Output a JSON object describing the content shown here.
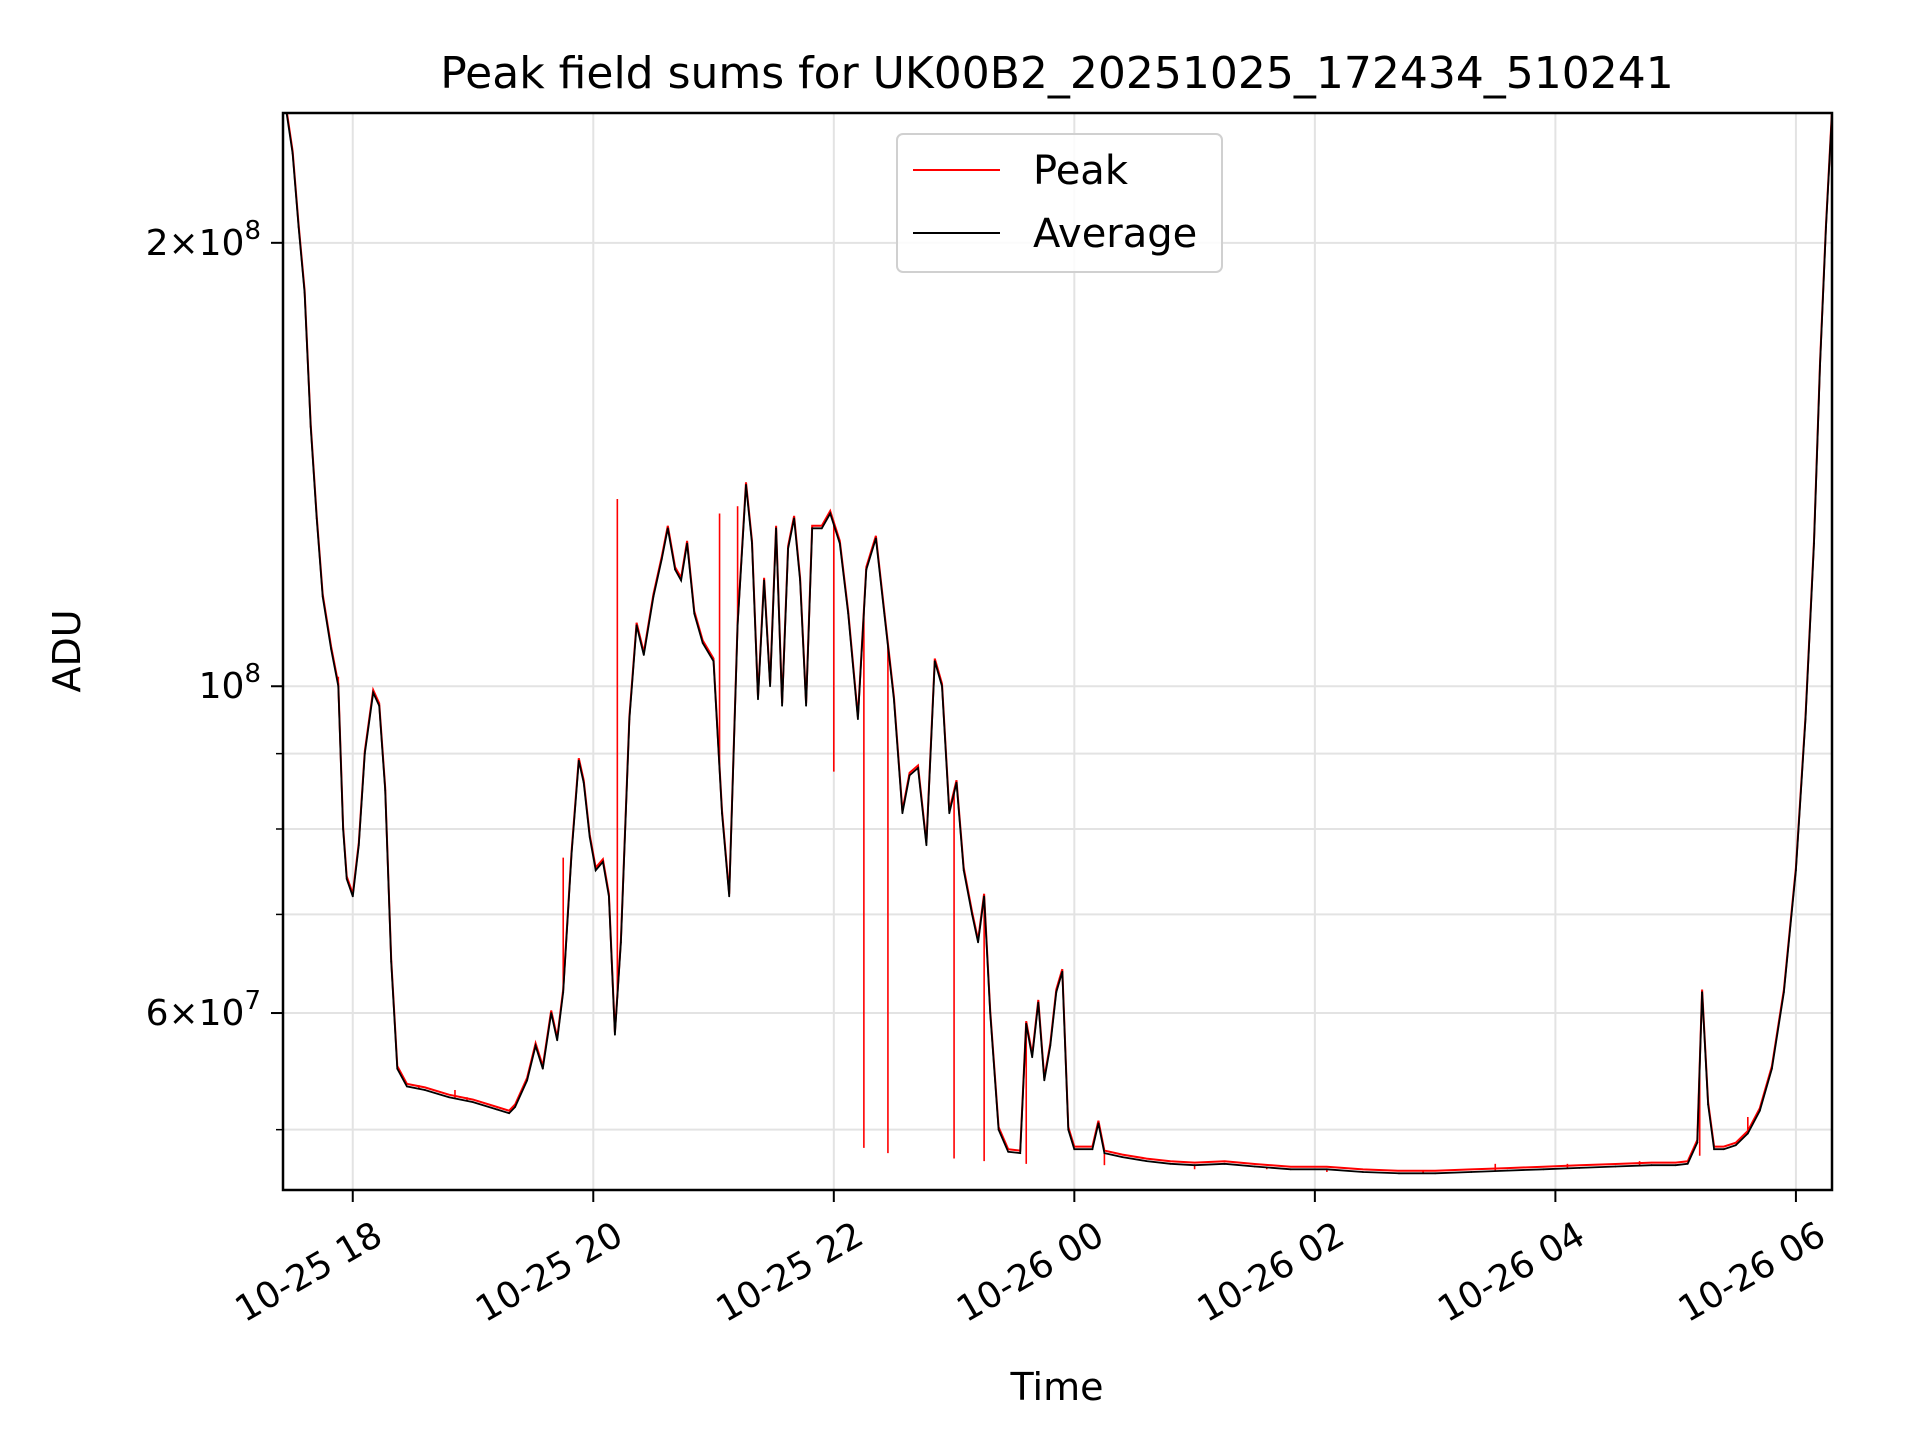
{
  "chart_data": {
    "type": "line",
    "title": "Peak field sums for UK00B2_20251025_172434_510241",
    "xlabel": "Time",
    "ylabel": "ADU",
    "yscale": "log",
    "ylim": [
      45500000,
      245000000
    ],
    "xlim_hours": [
      -0.58,
      12.3
    ],
    "x_unit": "hours since 2025-10-25 18:00",
    "grid": true,
    "legend_location": "upper-center",
    "x_ticks": [
      {
        "hour": 0,
        "label": "10-25 18"
      },
      {
        "hour": 2,
        "label": "10-25 20"
      },
      {
        "hour": 4,
        "label": "10-25 22"
      },
      {
        "hour": 6,
        "label": "10-26 00"
      },
      {
        "hour": 8,
        "label": "10-26 02"
      },
      {
        "hour": 10,
        "label": "10-26 04"
      },
      {
        "hour": 12,
        "label": "10-26 06"
      }
    ],
    "y_major_ticks": [
      {
        "value": 60000000,
        "base": "6",
        "exp": "7"
      },
      {
        "value": 100000000,
        "base": "",
        "exp": "8"
      },
      {
        "value": 200000000,
        "base": "2",
        "exp": "8"
      }
    ],
    "y_minor_ticks": [
      50000000,
      70000000,
      80000000,
      90000000
    ],
    "series": [
      {
        "name": "Peak",
        "color": "#ff0000",
        "spikes": [
          {
            "hour": -0.12,
            "value": 101500000
          },
          {
            "hour": 0.55,
            "value": 53600000
          },
          {
            "hour": 0.85,
            "value": 53200000
          },
          {
            "hour": 0.95,
            "value": 52600000
          },
          {
            "hour": 1.75,
            "value": 76500000
          },
          {
            "hour": 2.2,
            "value": 134000000
          },
          {
            "hour": 3.05,
            "value": 131000000
          },
          {
            "hour": 3.2,
            "value": 132500000
          },
          {
            "hour": 4.0,
            "value": 87500000
          },
          {
            "hour": 4.25,
            "value": 48600000
          },
          {
            "hour": 4.45,
            "value": 48200000
          },
          {
            "hour": 5.0,
            "value": 47800000
          },
          {
            "hour": 5.25,
            "value": 47600000
          },
          {
            "hour": 5.6,
            "value": 47400000
          },
          {
            "hour": 6.25,
            "value": 47300000
          },
          {
            "hour": 7.0,
            "value": 47000000
          },
          {
            "hour": 7.6,
            "value": 47000000
          },
          {
            "hour": 8.1,
            "value": 46800000
          },
          {
            "hour": 8.9,
            "value": 46900000
          },
          {
            "hour": 9.5,
            "value": 47400000
          },
          {
            "hour": 10.1,
            "value": 47400000
          },
          {
            "hour": 10.7,
            "value": 47600000
          },
          {
            "hour": 11.2,
            "value": 48000000
          },
          {
            "hour": 11.6,
            "value": 51000000
          }
        ]
      },
      {
        "name": "Average",
        "color": "#000000",
        "points": [
          [
            -0.55,
            245000000
          ],
          [
            -0.5,
            230000000
          ],
          [
            -0.45,
            205000000
          ],
          [
            -0.4,
            185000000
          ],
          [
            -0.35,
            150000000
          ],
          [
            -0.3,
            130000000
          ],
          [
            -0.25,
            115000000
          ],
          [
            -0.18,
            106000000
          ],
          [
            -0.12,
            100000000
          ],
          [
            -0.08,
            80000000
          ],
          [
            -0.05,
            74000000
          ],
          [
            0.0,
            72000000
          ],
          [
            0.05,
            78000000
          ],
          [
            0.1,
            90000000
          ],
          [
            0.17,
            99000000
          ],
          [
            0.22,
            97000000
          ],
          [
            0.27,
            85000000
          ],
          [
            0.32,
            65000000
          ],
          [
            0.37,
            55000000
          ],
          [
            0.45,
            53500000
          ],
          [
            0.6,
            53200000
          ],
          [
            0.8,
            52600000
          ],
          [
            1.0,
            52200000
          ],
          [
            1.2,
            51600000
          ],
          [
            1.3,
            51300000
          ],
          [
            1.35,
            51800000
          ],
          [
            1.45,
            54000000
          ],
          [
            1.52,
            57000000
          ],
          [
            1.58,
            55000000
          ],
          [
            1.65,
            60000000
          ],
          [
            1.7,
            57500000
          ],
          [
            1.75,
            62000000
          ],
          [
            1.82,
            77000000
          ],
          [
            1.88,
            89000000
          ],
          [
            1.92,
            86000000
          ],
          [
            1.97,
            79000000
          ],
          [
            2.02,
            75000000
          ],
          [
            2.08,
            76000000
          ],
          [
            2.13,
            72000000
          ],
          [
            2.18,
            58000000
          ],
          [
            2.23,
            67000000
          ],
          [
            2.3,
            95000000
          ],
          [
            2.36,
            110000000
          ],
          [
            2.42,
            105000000
          ],
          [
            2.5,
            115000000
          ],
          [
            2.57,
            122000000
          ],
          [
            2.62,
            128000000
          ],
          [
            2.68,
            120000000
          ],
          [
            2.73,
            118000000
          ],
          [
            2.78,
            125000000
          ],
          [
            2.84,
            112000000
          ],
          [
            2.91,
            107000000
          ],
          [
            3.0,
            104000000
          ],
          [
            3.07,
            82000000
          ],
          [
            3.13,
            72000000
          ],
          [
            3.2,
            110000000
          ],
          [
            3.27,
            137000000
          ],
          [
            3.32,
            125000000
          ],
          [
            3.37,
            98000000
          ],
          [
            3.42,
            118000000
          ],
          [
            3.47,
            100000000
          ],
          [
            3.52,
            128000000
          ],
          [
            3.57,
            97000000
          ],
          [
            3.62,
            124000000
          ],
          [
            3.67,
            130000000
          ],
          [
            3.72,
            118000000
          ],
          [
            3.77,
            97000000
          ],
          [
            3.82,
            128000000
          ],
          [
            3.9,
            128000000
          ],
          [
            3.97,
            131000000
          ],
          [
            4.05,
            125000000
          ],
          [
            4.12,
            112000000
          ],
          [
            4.2,
            95000000
          ],
          [
            4.27,
            120000000
          ],
          [
            4.35,
            126000000
          ],
          [
            4.42,
            112000000
          ],
          [
            4.5,
            98000000
          ],
          [
            4.57,
            82000000
          ],
          [
            4.63,
            87000000
          ],
          [
            4.7,
            88000000
          ],
          [
            4.77,
            78000000
          ],
          [
            4.84,
            104000000
          ],
          [
            4.9,
            100000000
          ],
          [
            4.96,
            82000000
          ],
          [
            5.02,
            86000000
          ],
          [
            5.08,
            75000000
          ],
          [
            5.15,
            70000000
          ],
          [
            5.2,
            67000000
          ],
          [
            5.25,
            72000000
          ],
          [
            5.3,
            60000000
          ],
          [
            5.37,
            50000000
          ],
          [
            5.45,
            48300000
          ],
          [
            5.55,
            48200000
          ],
          [
            5.6,
            59000000
          ],
          [
            5.65,
            56000000
          ],
          [
            5.7,
            61000000
          ],
          [
            5.75,
            54000000
          ],
          [
            5.8,
            57000000
          ],
          [
            5.85,
            62000000
          ],
          [
            5.9,
            64000000
          ],
          [
            5.95,
            50000000
          ],
          [
            6.0,
            48500000
          ],
          [
            6.15,
            48500000
          ],
          [
            6.2,
            50500000
          ],
          [
            6.25,
            48200000
          ],
          [
            6.4,
            47900000
          ],
          [
            6.6,
            47600000
          ],
          [
            6.8,
            47400000
          ],
          [
            7.0,
            47300000
          ],
          [
            7.25,
            47400000
          ],
          [
            7.5,
            47200000
          ],
          [
            7.8,
            47000000
          ],
          [
            8.1,
            47000000
          ],
          [
            8.4,
            46800000
          ],
          [
            8.7,
            46700000
          ],
          [
            9.0,
            46700000
          ],
          [
            9.3,
            46800000
          ],
          [
            9.6,
            46900000
          ],
          [
            9.9,
            47000000
          ],
          [
            10.2,
            47100000
          ],
          [
            10.5,
            47200000
          ],
          [
            10.8,
            47300000
          ],
          [
            11.0,
            47300000
          ],
          [
            11.1,
            47400000
          ],
          [
            11.18,
            49000000
          ],
          [
            11.22,
            62000000
          ],
          [
            11.27,
            52000000
          ],
          [
            11.32,
            48500000
          ],
          [
            11.4,
            48500000
          ],
          [
            11.5,
            48800000
          ],
          [
            11.6,
            49700000
          ],
          [
            11.7,
            51500000
          ],
          [
            11.8,
            55000000
          ],
          [
            11.9,
            62000000
          ],
          [
            12.0,
            75000000
          ],
          [
            12.08,
            95000000
          ],
          [
            12.15,
            125000000
          ],
          [
            12.2,
            165000000
          ],
          [
            12.25,
            205000000
          ],
          [
            12.3,
            245000000
          ]
        ]
      }
    ]
  }
}
